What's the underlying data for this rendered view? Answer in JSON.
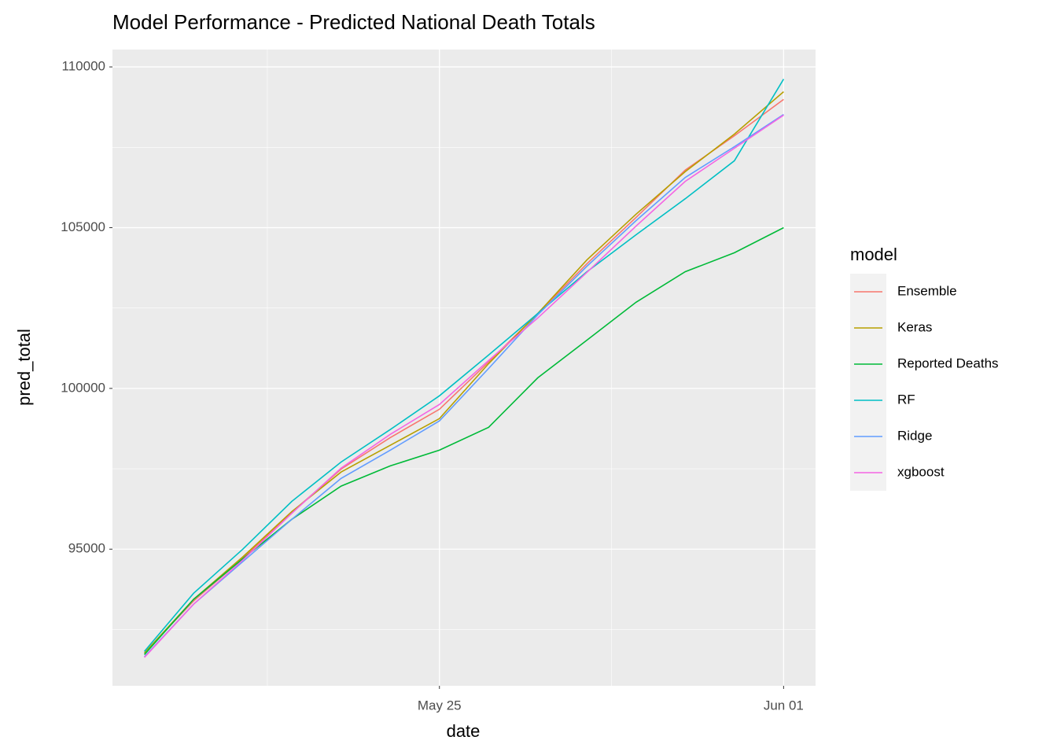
{
  "chart_data": {
    "type": "line",
    "title": "Model Performance - Predicted National Death Totals",
    "x_label": "date",
    "y_label": "pred_total",
    "legend_title": "model",
    "legend_position": "right",
    "grid": true,
    "x": [
      "May 19",
      "May 20",
      "May 21",
      "May 22",
      "May 23",
      "May 24",
      "May 25",
      "May 26",
      "May 27",
      "May 28",
      "May 29",
      "May 30",
      "May 31",
      "Jun 01"
    ],
    "xticks": [
      "May 25",
      "Jun 01"
    ],
    "ylim": [
      90750,
      110540
    ],
    "yticks": [
      95000,
      100000,
      105000,
      110000
    ],
    "series": [
      {
        "name": "Ensemble",
        "color": "#F8766D",
        "values": [
          91770,
          93390,
          94710,
          96150,
          97490,
          98470,
          99350,
          100820,
          102330,
          103880,
          105320,
          106790,
          107860,
          108990
        ]
      },
      {
        "name": "Keras",
        "color": "#B79F00",
        "values": [
          91770,
          93440,
          94760,
          96170,
          97400,
          98230,
          99060,
          100770,
          102330,
          104000,
          105420,
          106740,
          107910,
          109230
        ]
      },
      {
        "name": "Reported Deaths",
        "color": "#00BA38",
        "values": [
          91720,
          93440,
          94700,
          95930,
          96960,
          97590,
          98080,
          98790,
          100330,
          101500,
          102680,
          103630,
          104220,
          105000
        ]
      },
      {
        "name": "RF",
        "color": "#00BFC4",
        "values": [
          91820,
          93630,
          95000,
          96490,
          97710,
          98720,
          99770,
          101040,
          102330,
          103630,
          104780,
          105900,
          107080,
          109620
        ]
      },
      {
        "name": "Ridge",
        "color": "#619CFF",
        "values": [
          91650,
          93290,
          94610,
          95930,
          97200,
          98080,
          98990,
          100620,
          102290,
          103800,
          105220,
          106560,
          107520,
          108520
        ]
      },
      {
        "name": "xgboost",
        "color": "#F564E3",
        "values": [
          91630,
          93290,
          94660,
          96120,
          97520,
          98570,
          99500,
          100870,
          102190,
          103610,
          105050,
          106440,
          107470,
          108500
        ]
      }
    ]
  }
}
